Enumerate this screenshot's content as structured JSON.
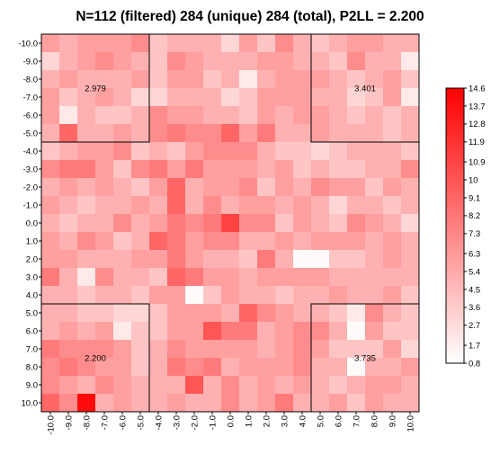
{
  "chart_data": {
    "type": "heatmap",
    "title": "N=112 (filtered) 284 (unique) 284 (total), P2LL = 2.200",
    "xlabel": "",
    "ylabel": "",
    "x_ticks": [
      "-10.0",
      "-9.0",
      "-8.0",
      "-7.0",
      "-6.0",
      "-5.0",
      "-4.0",
      "-3.0",
      "-2.0",
      "-1.0",
      "0.0",
      "1.0",
      "2.0",
      "3.0",
      "4.0",
      "5.0",
      "6.0",
      "7.0",
      "8.0",
      "9.0",
      "10.0"
    ],
    "y_ticks": [
      "-10.0",
      "-9.0",
      "-8.0",
      "-7.0",
      "-6.0",
      "-5.0",
      "-4.0",
      "-3.0",
      "-2.0",
      "-1.0",
      "0.0",
      "1.0",
      "2.0",
      "3.0",
      "4.0",
      "5.0",
      "6.0",
      "7.0",
      "8.0",
      "9.0",
      "10.0"
    ],
    "xlim": [
      -10,
      10
    ],
    "ylim": [
      -10,
      10
    ],
    "colorbar": {
      "min": 0.8,
      "max": 14.6,
      "ticks": [
        "0.8",
        "1.7",
        "2.7",
        "3.6",
        "4.5",
        "5.4",
        "6.3",
        "7.3",
        "8.2",
        "9.1",
        "10",
        "10.9",
        "11.9",
        "12.8",
        "13.7",
        "14.6"
      ],
      "low_color": "#ffffff",
      "high_color": "#ff0000"
    },
    "values": [
      [
        6,
        5,
        6,
        6,
        6,
        7,
        4,
        5,
        5,
        5,
        3,
        6,
        4,
        7,
        5,
        4,
        5,
        6,
        6,
        5,
        5
      ],
      [
        3,
        5,
        6,
        7,
        6,
        5,
        4,
        7,
        6,
        5,
        5,
        5,
        6,
        6,
        5,
        5,
        4,
        7,
        5,
        5,
        2
      ],
      [
        5,
        6,
        5,
        5,
        5,
        6,
        4,
        6,
        6,
        4,
        5,
        2,
        5,
        6,
        6,
        6,
        5,
        4,
        5,
        6,
        4
      ],
      [
        6,
        4,
        5,
        6,
        5,
        3,
        3,
        5,
        5,
        5,
        3,
        4,
        6,
        6,
        6,
        5,
        5,
        3,
        4,
        6,
        2
      ],
      [
        6,
        2,
        5,
        4,
        4,
        5,
        7,
        6,
        6,
        5,
        5,
        4,
        6,
        5,
        6,
        6,
        5,
        4,
        5,
        4,
        5
      ],
      [
        5,
        9,
        5,
        5,
        6,
        5,
        7,
        8,
        7,
        7,
        9,
        6,
        8,
        5,
        5,
        6,
        5,
        5,
        5,
        4,
        5
      ],
      [
        4,
        5,
        6,
        6,
        7,
        4,
        5,
        4,
        6,
        7,
        7,
        7,
        5,
        4,
        4,
        3,
        4,
        5,
        5,
        5,
        4
      ],
      [
        7,
        8,
        8,
        6,
        4,
        7,
        8,
        6,
        8,
        6,
        6,
        6,
        5,
        6,
        4,
        5,
        4,
        4,
        5,
        5,
        7
      ],
      [
        5,
        6,
        5,
        6,
        5,
        4,
        6,
        9,
        5,
        6,
        6,
        7,
        4,
        6,
        5,
        7,
        6,
        6,
        4,
        6,
        5
      ],
      [
        6,
        5,
        4,
        5,
        5,
        6,
        5,
        9,
        5,
        7,
        5,
        6,
        6,
        5,
        6,
        5,
        3,
        5,
        5,
        4,
        5
      ],
      [
        5,
        4,
        5,
        5,
        7,
        5,
        6,
        8,
        7,
        8,
        11,
        7,
        7,
        4,
        6,
        5,
        4,
        7,
        6,
        5,
        3
      ],
      [
        6,
        5,
        7,
        6,
        4,
        5,
        9,
        8,
        6,
        7,
        7,
        5,
        5,
        6,
        5,
        6,
        6,
        6,
        5,
        6,
        5
      ],
      [
        6,
        6,
        5,
        5,
        5,
        6,
        6,
        8,
        6,
        5,
        5,
        4,
        8,
        5,
        1,
        1,
        4,
        4,
        5,
        6,
        5
      ],
      [
        8,
        5,
        2,
        7,
        5,
        5,
        4,
        9,
        8,
        6,
        6,
        5,
        6,
        6,
        6,
        6,
        5,
        5,
        5,
        5,
        5
      ],
      [
        5,
        5,
        4,
        5,
        5,
        4,
        6,
        6,
        1,
        4,
        6,
        5,
        5,
        4,
        5,
        5,
        6,
        5,
        5,
        6,
        4
      ],
      [
        5,
        5,
        4,
        4,
        3,
        3,
        4,
        6,
        6,
        6,
        5,
        9,
        7,
        6,
        5,
        5,
        4,
        2,
        7,
        5,
        4
      ],
      [
        5,
        6,
        5,
        6,
        2,
        4,
        4,
        6,
        6,
        10,
        8,
        8,
        5,
        6,
        7,
        7,
        5,
        1,
        6,
        4,
        4
      ],
      [
        8,
        7,
        7,
        7,
        6,
        4,
        5,
        7,
        6,
        6,
        6,
        6,
        5,
        6,
        7,
        6,
        4,
        4,
        4,
        6,
        3
      ],
      [
        7,
        8,
        7,
        6,
        6,
        4,
        5,
        8,
        7,
        8,
        5,
        6,
        6,
        6,
        7,
        5,
        5,
        1,
        5,
        5,
        6
      ],
      [
        7,
        6,
        5,
        7,
        6,
        5,
        5,
        5,
        10,
        5,
        7,
        5,
        6,
        5,
        6,
        5,
        4,
        5,
        6,
        6,
        5
      ],
      [
        9,
        7,
        14,
        5,
        6,
        5,
        5,
        6,
        5,
        5,
        7,
        5,
        6,
        8,
        5,
        5,
        6,
        4,
        6,
        5,
        5
      ]
    ],
    "annotations": [
      {
        "text": "2.979",
        "x": -7.5,
        "y": -7.5
      },
      {
        "text": "3.401",
        "x": 7.5,
        "y": -7.5
      },
      {
        "text": "2.200",
        "x": -7.5,
        "y": 7.5
      },
      {
        "text": "3.735",
        "x": 7.5,
        "y": 7.5
      }
    ],
    "regions": [
      {
        "x": [
          -10.5,
          -4.5
        ],
        "y": [
          -10.5,
          -4.5
        ]
      },
      {
        "x": [
          4.5,
          10.5
        ],
        "y": [
          -10.5,
          -4.5
        ]
      },
      {
        "x": [
          -10.5,
          -4.5
        ],
        "y": [
          4.5,
          10.5
        ]
      },
      {
        "x": [
          4.5,
          10.5
        ],
        "y": [
          4.5,
          10.5
        ]
      }
    ],
    "grid": false,
    "legend": "colorbar-right"
  }
}
